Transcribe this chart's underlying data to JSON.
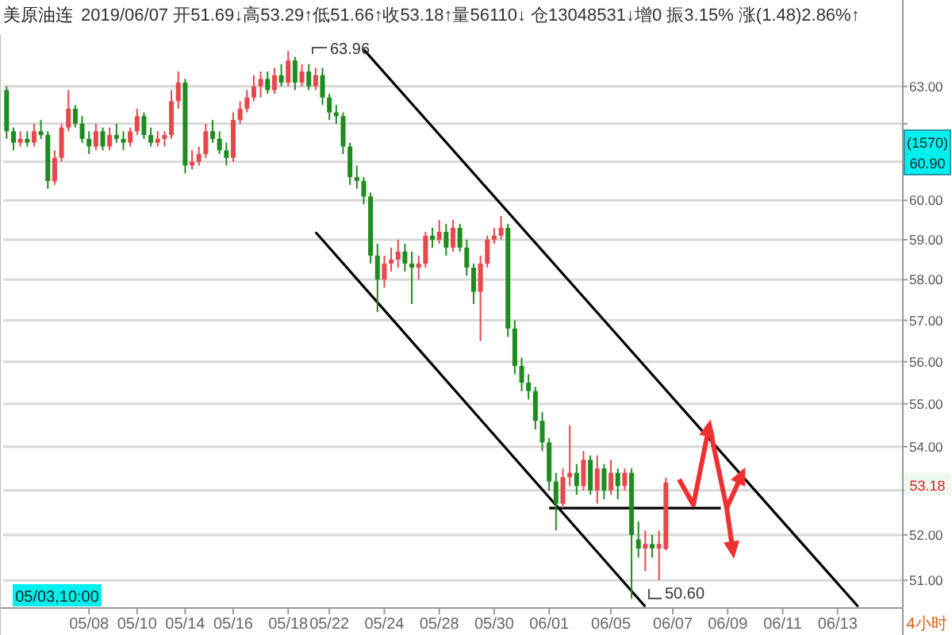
{
  "chart_data": {
    "type": "candlestick",
    "title": "美原油连",
    "subtitle": "2019/06/07 开51.69↓高53.29↑低51.66↑收53.18↑量56110↓ 仓13048531↓增0 振3.15% 涨(1.48)2.86%↑",
    "categories": [
      null,
      null,
      null,
      null,
      null,
      null,
      null,
      null,
      null,
      null,
      null,
      null,
      "05/08",
      null,
      null,
      null,
      null,
      null,
      null,
      "05/10",
      null,
      null,
      null,
      null,
      null,
      null,
      "05/14",
      null,
      null,
      null,
      null,
      null,
      null,
      "05/16",
      null,
      null,
      null,
      null,
      null,
      null,
      null,
      "05/18",
      null,
      null,
      null,
      null,
      null,
      "05/22",
      null,
      null,
      null,
      null,
      null,
      null,
      null,
      "05/24",
      null,
      null,
      null,
      null,
      null,
      null,
      null,
      "05/28",
      null,
      null,
      null,
      null,
      null,
      null,
      null,
      "05/30",
      null,
      null,
      null,
      null,
      null,
      null,
      null,
      "06/01",
      null,
      null,
      null,
      null,
      null,
      null,
      null,
      null,
      "06/05",
      null,
      null,
      null,
      null,
      null,
      null,
      null,
      null,
      "06/07",
      null,
      null,
      null,
      null,
      null,
      null,
      null,
      "06/09",
      null,
      null,
      null,
      null,
      null,
      null,
      null,
      "06/11",
      null,
      null,
      null,
      null,
      null,
      null,
      null,
      "06/13",
      null,
      null,
      null,
      null,
      null,
      null,
      null,
      null,
      null
    ],
    "ohlc": [
      [
        62.9,
        63.0,
        61.6,
        61.8
      ],
      [
        61.8,
        61.9,
        61.3,
        61.5
      ],
      [
        61.5,
        61.8,
        61.4,
        61.6
      ],
      [
        61.6,
        61.8,
        61.4,
        61.5
      ],
      [
        61.5,
        62.0,
        61.4,
        61.8
      ],
      [
        61.8,
        62.1,
        61.6,
        61.7
      ],
      [
        61.7,
        61.8,
        60.3,
        60.5
      ],
      [
        60.5,
        61.3,
        60.4,
        61.1
      ],
      [
        61.1,
        62.0,
        61.0,
        61.9
      ],
      [
        61.9,
        62.9,
        61.8,
        62.4
      ],
      [
        62.4,
        62.5,
        61.9,
        62.0
      ],
      [
        62.0,
        62.2,
        61.5,
        61.6
      ],
      [
        61.6,
        61.8,
        61.2,
        61.4
      ],
      [
        61.4,
        62.0,
        61.3,
        61.8
      ],
      [
        61.8,
        61.9,
        61.3,
        61.4
      ],
      [
        61.4,
        61.9,
        61.3,
        61.7
      ],
      [
        61.7,
        62.0,
        61.5,
        61.6
      ],
      [
        61.6,
        61.8,
        61.3,
        61.5
      ],
      [
        61.5,
        61.9,
        61.4,
        61.8
      ],
      [
        61.8,
        62.4,
        61.7,
        62.2
      ],
      [
        62.2,
        62.3,
        61.6,
        61.7
      ],
      [
        61.7,
        61.9,
        61.4,
        61.5
      ],
      [
        61.5,
        61.8,
        61.4,
        61.6
      ],
      [
        61.6,
        61.8,
        61.4,
        61.7
      ],
      [
        61.7,
        62.9,
        61.6,
        62.6
      ],
      [
        62.6,
        63.4,
        62.4,
        63.1
      ],
      [
        63.1,
        63.2,
        60.7,
        60.9
      ],
      [
        60.9,
        61.3,
        60.8,
        61.0
      ],
      [
        61.0,
        61.4,
        60.9,
        61.2
      ],
      [
        61.2,
        62.0,
        61.1,
        61.8
      ],
      [
        61.8,
        62.1,
        61.5,
        61.6
      ],
      [
        61.6,
        61.8,
        61.2,
        61.3
      ],
      [
        61.3,
        61.5,
        60.9,
        61.1
      ],
      [
        61.1,
        62.3,
        61.0,
        62.1
      ],
      [
        62.1,
        62.6,
        62.0,
        62.4
      ],
      [
        62.4,
        62.9,
        62.3,
        62.7
      ],
      [
        62.7,
        63.3,
        62.6,
        63.0
      ],
      [
        63.0,
        63.4,
        62.7,
        63.2
      ],
      [
        63.2,
        63.4,
        62.8,
        62.9
      ],
      [
        62.9,
        63.5,
        62.8,
        63.3
      ],
      [
        63.3,
        63.6,
        63.0,
        63.1
      ],
      [
        63.1,
        63.96,
        63.0,
        63.7
      ],
      [
        63.7,
        63.8,
        62.9,
        63.1
      ],
      [
        63.1,
        63.6,
        63.0,
        63.4
      ],
      [
        63.4,
        63.6,
        62.9,
        63.0
      ],
      [
        63.0,
        63.5,
        62.9,
        63.3
      ],
      [
        63.3,
        63.5,
        62.5,
        62.7
      ],
      [
        62.7,
        62.8,
        62.1,
        62.3
      ],
      [
        62.3,
        62.5,
        62.0,
        62.2
      ],
      [
        62.2,
        62.3,
        61.2,
        61.4
      ],
      [
        61.4,
        61.5,
        60.4,
        60.6
      ],
      [
        60.6,
        60.9,
        60.3,
        60.5
      ],
      [
        60.5,
        60.6,
        59.9,
        60.1
      ],
      [
        60.1,
        60.2,
        58.4,
        58.6
      ],
      [
        58.6,
        58.9,
        57.2,
        58.0
      ],
      [
        58.0,
        58.6,
        57.8,
        58.4
      ],
      [
        58.4,
        58.8,
        58.2,
        58.5
      ],
      [
        58.5,
        59.0,
        58.3,
        58.7
      ],
      [
        58.7,
        58.9,
        58.2,
        58.4
      ],
      [
        58.4,
        58.7,
        57.4,
        58.3
      ],
      [
        58.3,
        58.6,
        58.0,
        58.4
      ],
      [
        58.4,
        59.2,
        58.3,
        59.1
      ],
      [
        59.1,
        59.3,
        58.8,
        59.0
      ],
      [
        59.0,
        59.5,
        58.9,
        59.2
      ],
      [
        59.2,
        59.4,
        58.6,
        58.8
      ],
      [
        58.8,
        59.5,
        58.7,
        59.3
      ],
      [
        59.3,
        59.4,
        58.7,
        58.8
      ],
      [
        58.8,
        59.0,
        58.1,
        58.3
      ],
      [
        58.3,
        58.4,
        57.4,
        57.7
      ],
      [
        57.7,
        58.6,
        56.5,
        58.4
      ],
      [
        58.4,
        59.1,
        58.3,
        59.0
      ],
      [
        59.0,
        59.3,
        58.9,
        59.1
      ],
      [
        59.1,
        59.6,
        59.0,
        59.3
      ],
      [
        59.3,
        59.4,
        56.6,
        56.8
      ],
      [
        56.8,
        57.0,
        55.7,
        55.9
      ],
      [
        55.9,
        56.1,
        55.3,
        55.5
      ],
      [
        55.5,
        55.7,
        55.1,
        55.3
      ],
      [
        55.3,
        55.4,
        54.4,
        54.6
      ],
      [
        54.6,
        54.8,
        53.9,
        54.1
      ],
      [
        54.1,
        54.2,
        53.0,
        53.2
      ],
      [
        53.2,
        53.4,
        52.1,
        52.7
      ],
      [
        52.7,
        53.5,
        52.6,
        53.3
      ],
      [
        53.3,
        54.5,
        53.1,
        53.4
      ],
      [
        53.4,
        53.6,
        52.9,
        53.1
      ],
      [
        53.1,
        53.9,
        53.0,
        53.7
      ],
      [
        53.7,
        53.8,
        52.9,
        53.0
      ],
      [
        53.0,
        53.8,
        52.7,
        53.5
      ],
      [
        53.5,
        53.6,
        52.8,
        53.0
      ],
      [
        53.0,
        53.7,
        52.9,
        53.4
      ],
      [
        53.4,
        53.5,
        52.8,
        53.1
      ],
      [
        53.1,
        53.5,
        53.0,
        53.4
      ],
      [
        53.4,
        53.5,
        50.6,
        52.0
      ],
      [
        51.9,
        52.3,
        51.5,
        51.7
      ],
      [
        51.7,
        52.1,
        51.2,
        51.8
      ],
      [
        51.8,
        52.0,
        51.5,
        51.7
      ],
      [
        51.7,
        52.1,
        51.0,
        51.8
      ],
      [
        51.69,
        53.29,
        51.66,
        53.18
      ],
      null,
      null,
      null,
      null,
      null,
      null,
      null,
      null,
      null,
      null,
      null,
      null,
      null,
      null,
      null,
      null,
      null,
      null,
      null,
      null,
      null,
      null,
      null,
      null,
      null,
      null,
      null,
      null,
      null,
      null,
      null,
      null,
      null,
      null
    ],
    "colors": [
      "#1e8c1e",
      "#1e8c1e",
      "#e8474c",
      "#1e8c1e",
      "#e8474c",
      "#1e8c1e",
      "#1e8c1e",
      "#e8474c",
      "#e8474c",
      "#e8474c",
      "#1e8c1e",
      "#1e8c1e",
      "#1e8c1e",
      "#e8474c",
      "#1e8c1e",
      "#e8474c",
      "#1e8c1e",
      "#1e8c1e",
      "#e8474c",
      "#e8474c",
      "#1e8c1e",
      "#1e8c1e",
      "#e8474c",
      "#e8474c",
      "#e8474c",
      "#e8474c",
      "#1e8c1e",
      "#e8474c",
      "#e8474c",
      "#e8474c",
      "#1e8c1e",
      "#1e8c1e",
      "#1e8c1e",
      "#e8474c",
      "#e8474c",
      "#e8474c",
      "#e8474c",
      "#e8474c",
      "#1e8c1e",
      "#e8474c",
      "#1e8c1e",
      "#e8474c",
      "#1e8c1e",
      "#e8474c",
      "#1e8c1e",
      "#e8474c",
      "#1e8c1e",
      "#1e8c1e",
      "#1e8c1e",
      "#1e8c1e",
      "#1e8c1e",
      "#1e8c1e",
      "#1e8c1e",
      "#1e8c1e",
      "#1e8c1e",
      "#e8474c",
      "#e8474c",
      "#e8474c",
      "#1e8c1e",
      "#1e8c1e",
      "#e8474c",
      "#e8474c",
      "#1e8c1e",
      "#e8474c",
      "#1e8c1e",
      "#e8474c",
      "#1e8c1e",
      "#1e8c1e",
      "#1e8c1e",
      "#e8474c",
      "#e8474c",
      "#e8474c",
      "#e8474c",
      "#1e8c1e",
      "#1e8c1e",
      "#1e8c1e",
      "#1e8c1e",
      "#1e8c1e",
      "#1e8c1e",
      "#1e8c1e",
      "#1e8c1e",
      "#e8474c",
      "#e8474c",
      "#1e8c1e",
      "#e8474c",
      "#1e8c1e",
      "#e8474c",
      "#1e8c1e",
      "#e8474c",
      "#1e8c1e",
      "#e8474c",
      "#1e8c1e",
      "#1e8c1e",
      "#e8474c",
      "#1e8c1e",
      "#e8474c",
      "#e8474c",
      null,
      null,
      null,
      null,
      null,
      null,
      null,
      null,
      null,
      null,
      null,
      null,
      null,
      null,
      null,
      null,
      null,
      null,
      null,
      null,
      null,
      null,
      null,
      null,
      null,
      null,
      null,
      null,
      null,
      null,
      null,
      null,
      null,
      null
    ],
    "series": [
      {
        "type": "line",
        "color": "#000000",
        "values": [
          null,
          null,
          null,
          null,
          null,
          null,
          null,
          null,
          null,
          null,
          null,
          null,
          null,
          null,
          null,
          null,
          null,
          null,
          null,
          null,
          null,
          null,
          null,
          null,
          null,
          null,
          null,
          null,
          null,
          null,
          null,
          null,
          null,
          null,
          null,
          null,
          null,
          null,
          null,
          null,
          null,
          null,
          null,
          null,
          null,
          null,
          null,
          null,
          null,
          null,
          null,
          null,
          64.0,
          null,
          null,
          null,
          null,
          null,
          null,
          null,
          null,
          null,
          null,
          null,
          null,
          null,
          null,
          null,
          null,
          null,
          null,
          null,
          null,
          null,
          null,
          null,
          null,
          null,
          null,
          null,
          null,
          null,
          null,
          null,
          null,
          null,
          null,
          null,
          null,
          null,
          null,
          null,
          null,
          null,
          null,
          null,
          null,
          null,
          null,
          null,
          null,
          null,
          null,
          null,
          null,
          null,
          null,
          null,
          null,
          null,
          null,
          null,
          null,
          null,
          null,
          null,
          null,
          null,
          null,
          null,
          null,
          null,
          null,
          null,
          50.43,
          null,
          null,
          null,
          null,
          null,
          null
        ]
      },
      {
        "type": "line",
        "color": "#000000",
        "values": [
          null,
          null,
          null,
          null,
          null,
          null,
          null,
          null,
          null,
          null,
          null,
          null,
          null,
          null,
          null,
          null,
          null,
          null,
          null,
          null,
          null,
          null,
          null,
          null,
          null,
          null,
          null,
          null,
          null,
          null,
          null,
          null,
          null,
          null,
          null,
          null,
          null,
          null,
          null,
          null,
          null,
          null,
          null,
          null,
          null,
          59.19,
          null,
          null,
          null,
          null,
          null,
          null,
          null,
          null,
          null,
          null,
          null,
          null,
          null,
          null,
          null,
          null,
          null,
          null,
          null,
          null,
          null,
          null,
          null,
          null,
          null,
          null,
          null,
          null,
          null,
          null,
          null,
          null,
          null,
          null,
          null,
          null,
          null,
          null,
          null,
          null,
          null,
          null,
          null,
          null,
          null,
          null,
          null,
          50.43,
          null,
          null,
          null,
          null,
          null,
          null,
          null,
          null,
          null,
          null,
          null,
          null,
          null,
          null,
          null,
          null,
          null,
          null,
          null,
          null,
          null,
          null,
          null,
          null,
          null,
          null,
          null,
          null,
          null,
          null,
          null,
          null,
          null,
          null,
          null,
          null,
          null
        ]
      },
      {
        "type": "line",
        "color": "#000000",
        "values": [
          null,
          null,
          null,
          null,
          null,
          null,
          null,
          null,
          null,
          null,
          null,
          null,
          null,
          null,
          null,
          null,
          null,
          null,
          null,
          null,
          null,
          null,
          null,
          null,
          null,
          null,
          null,
          null,
          null,
          null,
          null,
          null,
          null,
          null,
          null,
          null,
          null,
          null,
          null,
          null,
          null,
          null,
          null,
          null,
          null,
          null,
          null,
          null,
          null,
          null,
          null,
          null,
          null,
          null,
          null,
          null,
          null,
          null,
          null,
          null,
          null,
          null,
          null,
          null,
          null,
          null,
          null,
          null,
          null,
          null,
          null,
          null,
          null,
          null,
          null,
          null,
          null,
          null,
          null,
          52.6,
          null,
          null,
          null,
          null,
          null,
          null,
          null,
          null,
          null,
          null,
          null,
          null,
          null,
          null,
          null,
          null,
          null,
          null,
          null,
          null,
          null,
          null,
          null,
          null,
          52.6,
          null,
          null,
          null,
          null,
          null,
          null,
          null,
          null,
          null,
          null,
          null,
          null,
          null,
          null,
          null,
          null,
          null,
          null,
          null,
          null,
          null,
          null,
          null,
          null,
          null,
          null
        ]
      }
    ],
    "ylim": [
      50.4,
      64.4
    ],
    "log": true,
    "yticks": [
      {
        "value": 51,
        "label": "51.00"
      },
      {
        "value": 52,
        "label": "52.00"
      },
      {
        "value": 53,
        "label": null
      },
      {
        "value": 54,
        "label": "54.00"
      },
      {
        "value": 55,
        "label": "55.00"
      },
      {
        "value": 56,
        "label": "56.00"
      },
      {
        "value": 57,
        "label": "57.00"
      },
      {
        "value": 58,
        "label": "58.00"
      },
      {
        "value": 59,
        "label": "59.00"
      },
      {
        "value": 60,
        "label": "60.00"
      },
      {
        "value": 61,
        "label": null
      },
      {
        "value": 62,
        "label": null
      },
      {
        "value": 63,
        "label": "63.00"
      }
    ],
    "grid": "y",
    "annotations": [
      "63.96",
      "50.60",
      "53.18",
      "(1570)\n60.90",
      "05/03,10:00",
      "4小时"
    ]
  }
}
